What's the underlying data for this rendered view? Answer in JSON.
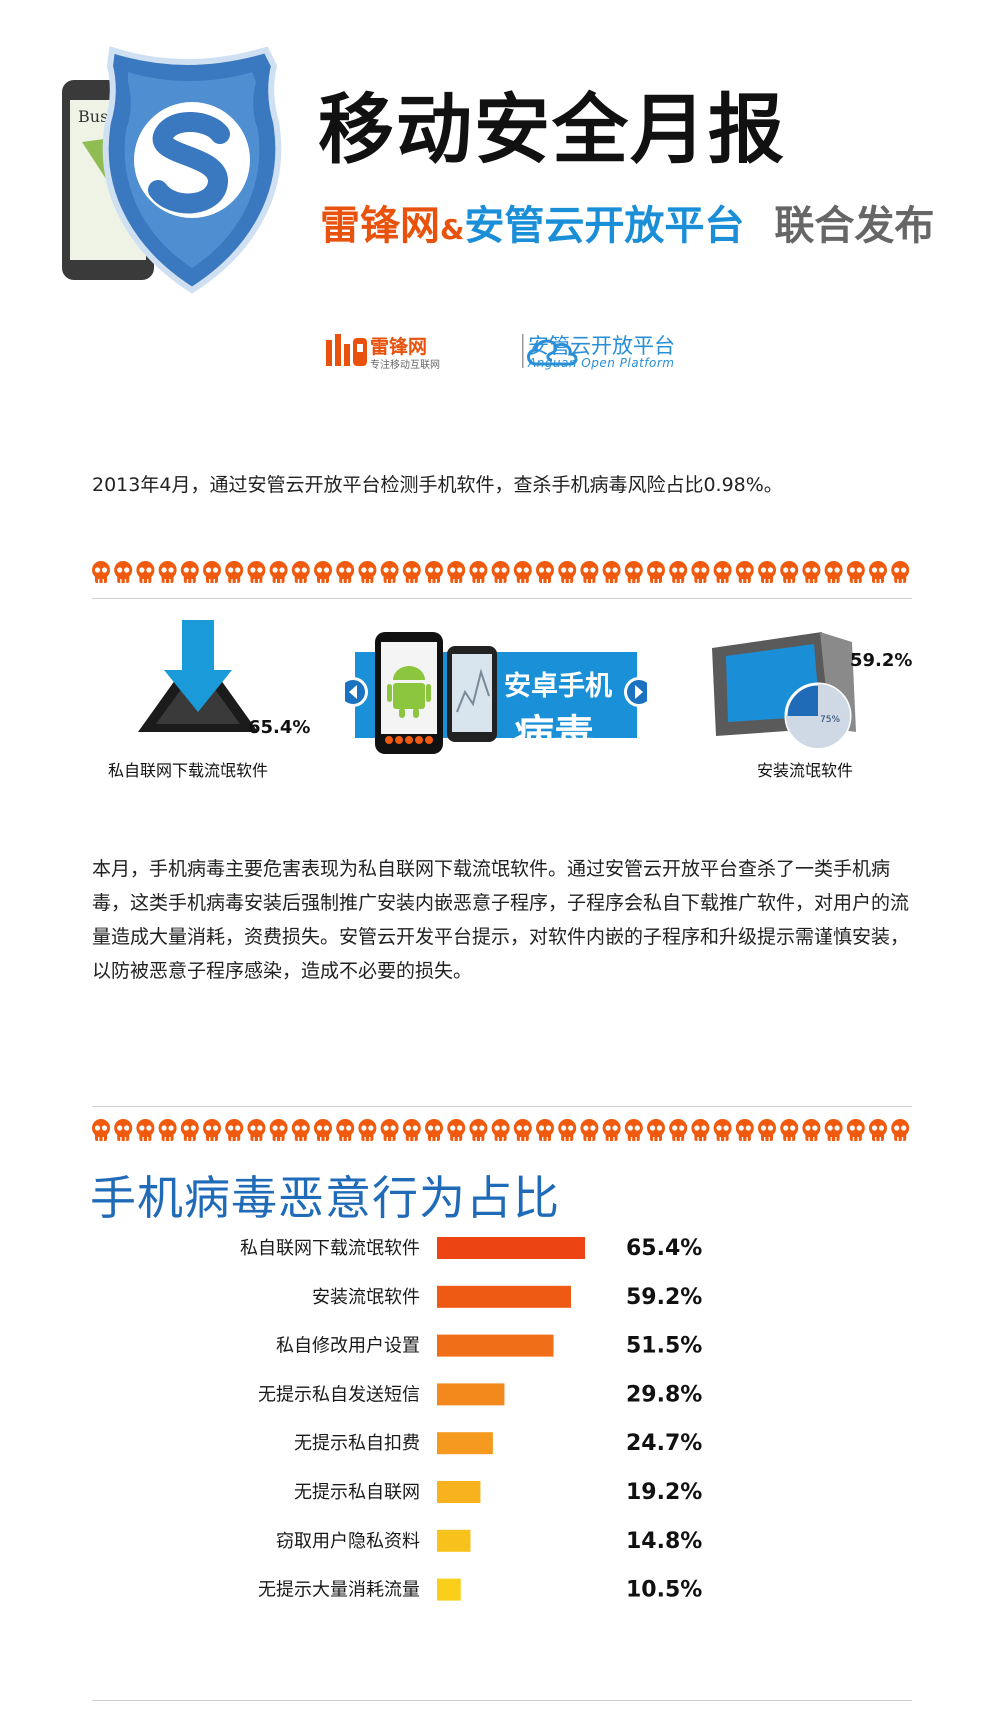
{
  "header": {
    "title": "移动安全月报",
    "publisher_1": "雷锋网",
    "publisher_amp": "&",
    "publisher_2": "安管云开放平台",
    "publisher_tail": "联合发布",
    "hero_screen_text": "Busi"
  },
  "logos": {
    "leiphone_name": "雷锋网",
    "leiphone_slogan": "专注移动互联网",
    "anguan_name": "安管云开放平台",
    "anguan_en": "Anguan Open Platform"
  },
  "intro": "2013年4月，通过安管云开放平台检测手机软件，查杀手机病毒风险占比0.98%。",
  "infographic": {
    "download_pct": "65.4%",
    "download_label": "私自联网下载流氓软件",
    "banner_line1": "安卓手机",
    "banner_line2": "病毒",
    "install_pct": "59.2%",
    "install_label": "安装流氓软件",
    "pie_label": "75%"
  },
  "body_paragraph": "本月，手机病毒主要危害表现为私自联网下载流氓软件。通过安管云开放平台查杀了一类手机病毒，这类手机病毒安装后强制推广安装内嵌恶意子程序，子程序会私自下载推广软件，对用户的流量造成大量消耗，资费损失。安管云开发平台提示，对软件内嵌的子程序和升级提示需谨慎安装，以防被恶意子程序感染，造成不必要的损失。",
  "colors": {
    "skull": "#f05a0f",
    "title_blue": "#1f6bb8",
    "bars": [
      "#ec4412",
      "#ee5a14",
      "#f06e17",
      "#f3881c",
      "#f59a1e",
      "#f7b21e",
      "#f8c21c",
      "#f9cf1c"
    ]
  },
  "chart_data": {
    "type": "bar",
    "orientation": "horizontal",
    "title": "手机病毒恶意行为占比",
    "categories": [
      "私自联网下载流氓软件",
      "安装流氓软件",
      "私自修改用户设置",
      "无提示私自发送短信",
      "无提示私自扣费",
      "无提示私自联网",
      "窃取用户隐私资料",
      "无提示大量消耗流量"
    ],
    "values": [
      65.4,
      59.2,
      51.5,
      29.8,
      24.7,
      19.2,
      14.8,
      10.5
    ],
    "value_labels": [
      "65.4%",
      "59.2%",
      "51.5%",
      "29.8%",
      "24.7%",
      "19.2%",
      "14.8%",
      "10.5%"
    ],
    "unit": "%",
    "grid": false,
    "legend": "none"
  }
}
